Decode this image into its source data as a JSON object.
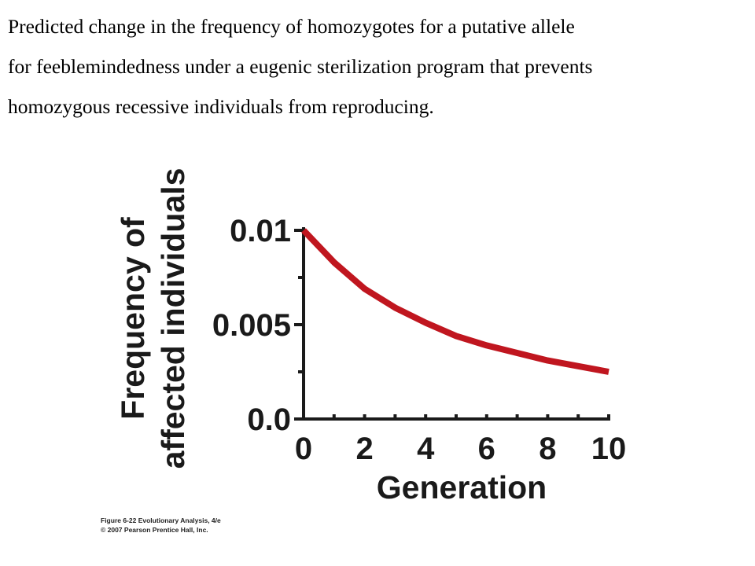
{
  "caption": {
    "line1": "Predicted change in the frequency of homozygotes for a putative allele",
    "line2": "for feeblemindedness under a eugenic sterilization program that prevents",
    "line3": "homozygous recessive individuals from reproducing."
  },
  "credit": {
    "line1": "Figure 6-22  Evolutionary Analysis, 4/e",
    "line2": "© 2007 Pearson Prentice Hall, Inc."
  },
  "chart_data": {
    "type": "line",
    "title": "",
    "xlabel": "Generation",
    "ylabel": [
      "Frequency of",
      "affected individuals"
    ],
    "xlim": [
      0,
      10
    ],
    "ylim": [
      0,
      0.01
    ],
    "x_ticks": [
      0,
      2,
      4,
      6,
      8,
      10
    ],
    "x_tick_labels": [
      "0",
      "2",
      "4",
      "6",
      "8",
      "10"
    ],
    "y_ticks": [
      0,
      0.005,
      0.01
    ],
    "y_tick_labels": [
      "0.0",
      "0.005",
      "0.01"
    ],
    "grid": false,
    "legend": "none",
    "line_color": "#c0161f",
    "axis_color": "#1a1a1a",
    "series": [
      {
        "x": [
          0,
          1,
          2,
          3,
          4,
          5,
          6,
          7,
          8,
          9,
          10
        ],
        "values": [
          0.01,
          0.0083,
          0.0069,
          0.0059,
          0.0051,
          0.0044,
          0.0039,
          0.0035,
          0.0031,
          0.0028,
          0.0025
        ]
      }
    ]
  }
}
